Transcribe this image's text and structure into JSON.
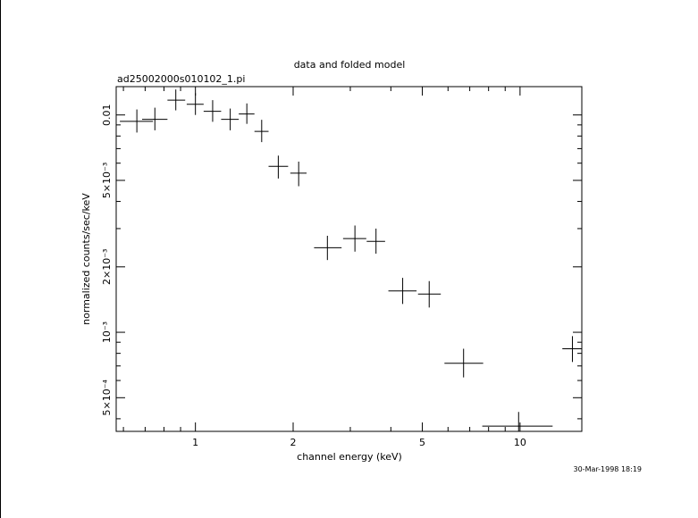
{
  "chart_data": {
    "type": "scatter",
    "title": "data and folded model",
    "subtitle": "ad25002000s010102_1.pi",
    "xlabel": "channel energy (keV)",
    "ylabel": "normalized counts/sec/keV",
    "timestamp": "30-Mar-1998 18:19",
    "x_scale": "log",
    "y_scale": "log",
    "xlim": [
      0.57,
      15.5
    ],
    "ylim": [
      0.00035,
      0.0135
    ],
    "x_ticks": [
      {
        "value": 1,
        "label": "1"
      },
      {
        "value": 2,
        "label": "2"
      },
      {
        "value": 5,
        "label": "5"
      },
      {
        "value": 10,
        "label": "10"
      }
    ],
    "y_ticks": [
      {
        "value": 0.0005,
        "label": "5×10⁻⁴"
      },
      {
        "value": 0.001,
        "label": "10⁻³"
      },
      {
        "value": 0.002,
        "label": "2×10⁻³"
      },
      {
        "value": 0.005,
        "label": "5×10⁻³"
      },
      {
        "value": 0.01,
        "label": "0.01"
      }
    ],
    "grid": false,
    "series": [
      {
        "points": [
          {
            "x": 0.66,
            "xlo": 0.585,
            "xhi": 0.74,
            "y": 0.00935,
            "ylo": 0.0083,
            "yhi": 0.0106
          },
          {
            "x": 0.75,
            "xlo": 0.685,
            "xhi": 0.82,
            "y": 0.00955,
            "ylo": 0.0085,
            "yhi": 0.0108
          },
          {
            "x": 0.87,
            "xlo": 0.82,
            "xhi": 0.93,
            "y": 0.0117,
            "ylo": 0.0105,
            "yhi": 0.0131
          },
          {
            "x": 1.0,
            "xlo": 0.94,
            "xhi": 1.06,
            "y": 0.0112,
            "ylo": 0.01,
            "yhi": 0.0126
          },
          {
            "x": 1.13,
            "xlo": 1.06,
            "xhi": 1.2,
            "y": 0.0104,
            "ylo": 0.0093,
            "yhi": 0.0117
          },
          {
            "x": 1.28,
            "xlo": 1.2,
            "xhi": 1.36,
            "y": 0.00955,
            "ylo": 0.0085,
            "yhi": 0.0107
          },
          {
            "x": 1.44,
            "xlo": 1.36,
            "xhi": 1.52,
            "y": 0.0101,
            "ylo": 0.0091,
            "yhi": 0.0113
          },
          {
            "x": 1.6,
            "xlo": 1.52,
            "xhi": 1.68,
            "y": 0.0084,
            "ylo": 0.0075,
            "yhi": 0.0095
          },
          {
            "x": 1.8,
            "xlo": 1.68,
            "xhi": 1.93,
            "y": 0.0058,
            "ylo": 0.0051,
            "yhi": 0.0065
          },
          {
            "x": 2.08,
            "xlo": 1.96,
            "xhi": 2.2,
            "y": 0.0054,
            "ylo": 0.0047,
            "yhi": 0.0061
          },
          {
            "x": 2.55,
            "xlo": 2.32,
            "xhi": 2.82,
            "y": 0.00245,
            "ylo": 0.00215,
            "yhi": 0.00278
          },
          {
            "x": 3.1,
            "xlo": 2.85,
            "xhi": 3.36,
            "y": 0.0027,
            "ylo": 0.00235,
            "yhi": 0.0031
          },
          {
            "x": 3.6,
            "xlo": 3.37,
            "xhi": 3.84,
            "y": 0.00262,
            "ylo": 0.0023,
            "yhi": 0.003
          },
          {
            "x": 4.35,
            "xlo": 3.93,
            "xhi": 4.8,
            "y": 0.00155,
            "ylo": 0.00135,
            "yhi": 0.00178
          },
          {
            "x": 5.25,
            "xlo": 4.85,
            "xhi": 5.7,
            "y": 0.0015,
            "ylo": 0.0013,
            "yhi": 0.00172
          },
          {
            "x": 6.7,
            "xlo": 5.85,
            "xhi": 7.7,
            "y": 0.00072,
            "ylo": 0.00062,
            "yhi": 0.00084
          },
          {
            "x": 9.9,
            "xlo": 7.65,
            "xhi": 12.6,
            "y": 0.00037,
            "ylo": 0.00032,
            "yhi": 0.00043
          },
          {
            "x": 14.5,
            "xlo": 13.5,
            "xhi": 15.5,
            "y": 0.00084,
            "ylo": 0.00073,
            "yhi": 0.00096
          }
        ]
      }
    ]
  }
}
